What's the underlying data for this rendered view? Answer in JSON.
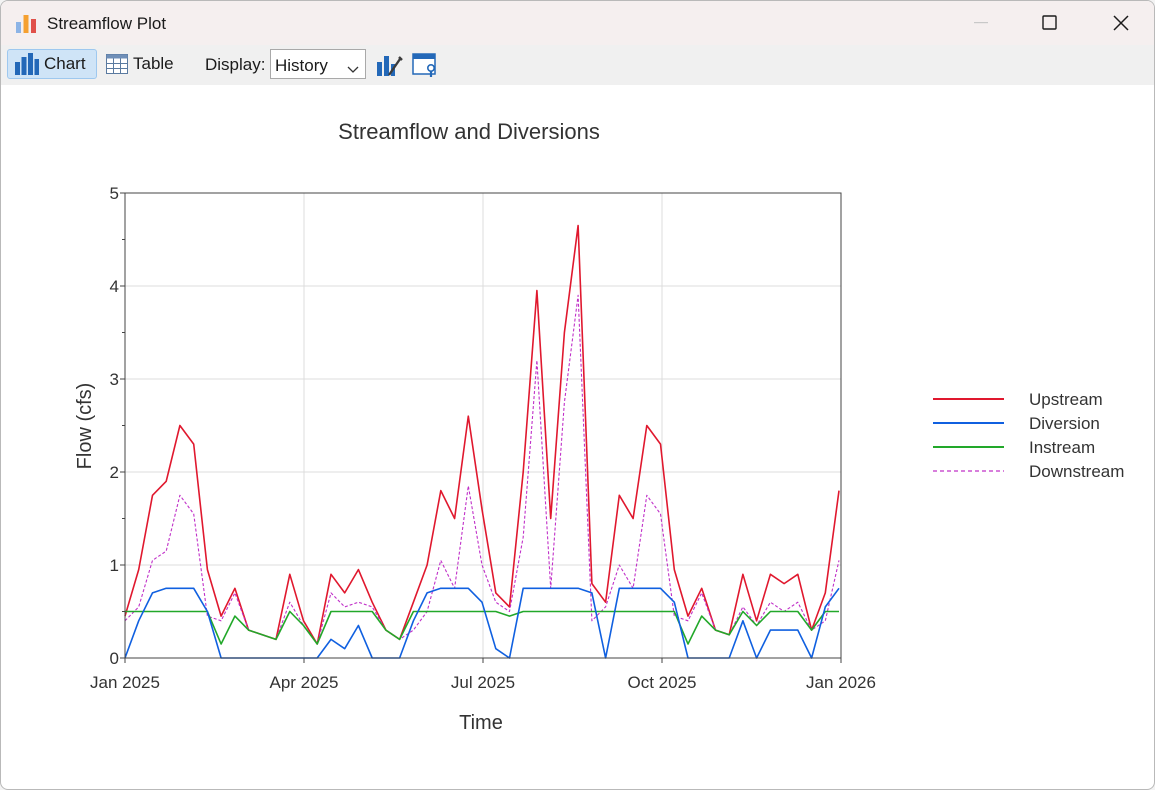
{
  "window": {
    "title": "Streamflow Plot",
    "minimize_label": "Minimize",
    "maximize_label": "Maximize",
    "close_label": "Close"
  },
  "toolbar": {
    "chart_label": "Chart",
    "table_label": "Table",
    "display_label": "Display:",
    "display_value": "History"
  },
  "colors": {
    "upstream": "#e0182e",
    "diversion": "#1060e0",
    "instream": "#22a82a",
    "downstream": "#c030c8",
    "chart_tab_bg": "#cfe4f7"
  },
  "chart_data": {
    "type": "line",
    "title": "Streamflow and Diversions",
    "xlabel": "Time",
    "ylabel": "Flow (cfs)",
    "x_tick_labels": [
      "Jan 2025",
      "Apr 2025",
      "Jul 2025",
      "Oct 2025",
      "Jan 2026"
    ],
    "x_range": [
      "2025-01-01",
      "2026-01-01"
    ],
    "ylim": [
      0,
      5
    ],
    "y_ticks": [
      0,
      1,
      2,
      3,
      4,
      5
    ],
    "grid": true,
    "legend_position": "right",
    "x": [
      "2025-01-01",
      "2025-01-08",
      "2025-01-15",
      "2025-01-22",
      "2025-01-29",
      "2025-02-05",
      "2025-02-12",
      "2025-02-19",
      "2025-02-26",
      "2025-03-05",
      "2025-03-12",
      "2025-03-19",
      "2025-03-26",
      "2025-04-02",
      "2025-04-09",
      "2025-04-16",
      "2025-04-23",
      "2025-04-30",
      "2025-05-07",
      "2025-05-14",
      "2025-05-21",
      "2025-05-28",
      "2025-06-04",
      "2025-06-11",
      "2025-06-18",
      "2025-06-25",
      "2025-07-02",
      "2025-07-09",
      "2025-07-16",
      "2025-07-23",
      "2025-07-30",
      "2025-08-06",
      "2025-08-13",
      "2025-08-20",
      "2025-08-27",
      "2025-09-03",
      "2025-09-10",
      "2025-09-17",
      "2025-09-24",
      "2025-10-01",
      "2025-10-08",
      "2025-10-15",
      "2025-10-22",
      "2025-10-29",
      "2025-11-05",
      "2025-11-12",
      "2025-11-19",
      "2025-11-26",
      "2025-12-03",
      "2025-12-10",
      "2025-12-17",
      "2025-12-24",
      "2025-12-31"
    ],
    "series": [
      {
        "name": "Upstream",
        "style": "solid",
        "values": [
          0.45,
          0.95,
          1.75,
          1.9,
          2.5,
          2.3,
          0.95,
          0.45,
          0.75,
          0.3,
          0.25,
          0.2,
          0.9,
          0.4,
          0.15,
          0.9,
          0.7,
          0.95,
          0.6,
          0.3,
          0.2,
          0.6,
          1.0,
          1.8,
          1.5,
          2.6,
          1.6,
          0.7,
          0.55,
          2.0,
          3.95,
          1.5,
          3.5,
          4.65,
          0.8,
          0.6,
          1.75,
          1.5,
          2.5,
          2.3,
          0.95,
          0.45,
          0.75,
          0.3,
          0.25,
          0.9,
          0.4,
          0.9,
          0.8,
          0.9,
          0.3,
          0.7,
          1.8
        ]
      },
      {
        "name": "Diversion",
        "style": "solid",
        "values": [
          0,
          0.4,
          0.7,
          0.75,
          0.75,
          0.75,
          0.5,
          0,
          0,
          0,
          0,
          0,
          0,
          0,
          0,
          0.2,
          0.1,
          0.35,
          0,
          0,
          0,
          0.4,
          0.7,
          0.75,
          0.75,
          0.75,
          0.6,
          0.1,
          0,
          0.75,
          0.75,
          0.75,
          0.75,
          0.75,
          0.7,
          0,
          0.75,
          0.75,
          0.75,
          0.75,
          0.6,
          0,
          0,
          0,
          0,
          0.4,
          0,
          0.3,
          0.3,
          0.3,
          0,
          0.55,
          0.75
        ]
      },
      {
        "name": "Instream",
        "style": "solid",
        "values": [
          0.5,
          0.5,
          0.5,
          0.5,
          0.5,
          0.5,
          0.5,
          0.15,
          0.45,
          0.3,
          0.25,
          0.2,
          0.5,
          0.35,
          0.15,
          0.5,
          0.5,
          0.5,
          0.5,
          0.3,
          0.2,
          0.5,
          0.5,
          0.5,
          0.5,
          0.5,
          0.5,
          0.5,
          0.45,
          0.5,
          0.5,
          0.5,
          0.5,
          0.5,
          0.5,
          0.5,
          0.5,
          0.5,
          0.5,
          0.5,
          0.5,
          0.15,
          0.45,
          0.3,
          0.25,
          0.5,
          0.35,
          0.5,
          0.5,
          0.5,
          0.3,
          0.5,
          0.5
        ]
      },
      {
        "name": "Downstream",
        "style": "dashed",
        "values": [
          0.4,
          0.55,
          1.05,
          1.15,
          1.75,
          1.55,
          0.45,
          0.4,
          0.7,
          0.3,
          0.25,
          0.2,
          0.6,
          0.35,
          0.15,
          0.7,
          0.55,
          0.6,
          0.55,
          0.3,
          0.2,
          0.3,
          0.5,
          1.05,
          0.75,
          1.85,
          1.0,
          0.6,
          0.5,
          1.3,
          3.2,
          0.75,
          2.75,
          3.9,
          0.4,
          0.55,
          1.0,
          0.75,
          1.75,
          1.55,
          0.45,
          0.4,
          0.7,
          0.3,
          0.25,
          0.55,
          0.35,
          0.6,
          0.5,
          0.6,
          0.3,
          0.4,
          1.05
        ]
      }
    ]
  }
}
